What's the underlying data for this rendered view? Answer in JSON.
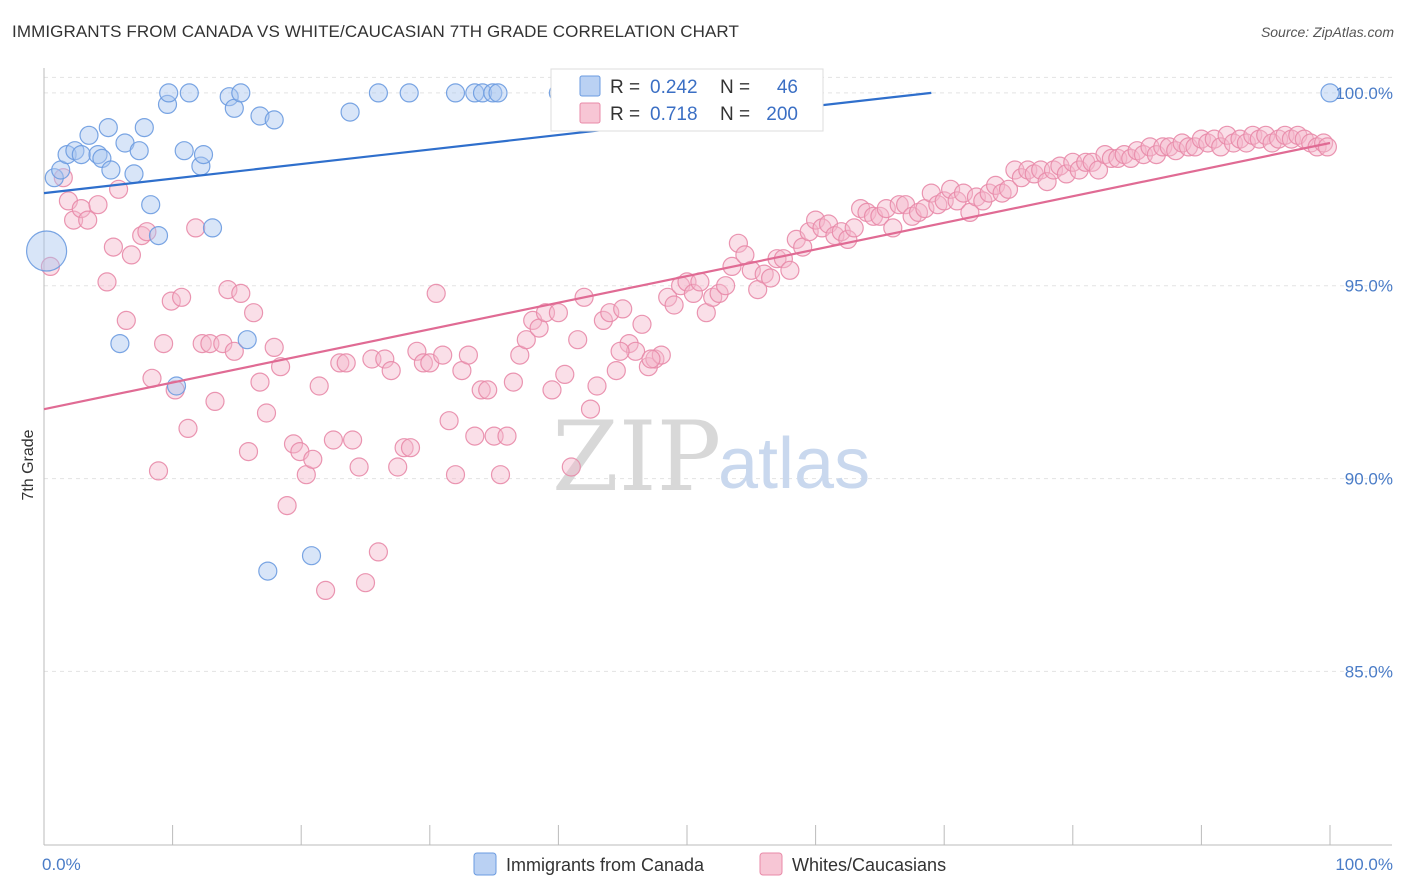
{
  "title": "IMMIGRANTS FROM CANADA VS WHITE/CAUCASIAN 7TH GRADE CORRELATION CHART",
  "source": "Source: ZipAtlas.com",
  "watermark": {
    "zip": "ZIP",
    "atlas": "atlas"
  },
  "chart_data": {
    "type": "scatter",
    "title": "IMMIGRANTS FROM CANADA VS WHITE/CAUCASIAN 7TH GRADE CORRELATION CHART",
    "xlabel": "",
    "ylabel": "7th Grade",
    "xlim": [
      0,
      100
    ],
    "ylim": [
      80.5,
      100.8
    ],
    "x_tick_labels": [
      "0.0%",
      "100.0%"
    ],
    "y_ticks": [
      85,
      90,
      95,
      100
    ],
    "y_tick_labels": [
      "85.0%",
      "90.0%",
      "95.0%",
      "100.0%"
    ],
    "grid": true,
    "legend": {
      "placement": "top-center",
      "rows": [
        {
          "r_label": "R =",
          "r_value": "0.242",
          "n_label": "N =",
          "n_value": "46"
        },
        {
          "r_label": "R =",
          "r_value": "0.718",
          "n_label": "N =",
          "n_value": "200"
        }
      ]
    },
    "series": [
      {
        "name": "Immigrants from Canada",
        "color": "#6b9be0",
        "fill": "#a9c6f0",
        "trend": {
          "x": [
            0,
            69
          ],
          "y": [
            97.4,
            100.0
          ]
        },
        "points": [
          [
            0.2,
            95.9
          ],
          [
            0.8,
            97.8
          ],
          [
            1.3,
            98.0
          ],
          [
            1.8,
            98.4
          ],
          [
            2.4,
            98.5
          ],
          [
            2.9,
            98.4
          ],
          [
            3.5,
            98.9
          ],
          [
            4.2,
            98.4
          ],
          [
            4.5,
            98.3
          ],
          [
            5.0,
            99.1
          ],
          [
            5.2,
            98.0
          ],
          [
            6.3,
            98.7
          ],
          [
            7.0,
            97.9
          ],
          [
            7.4,
            98.5
          ],
          [
            7.8,
            99.1
          ],
          [
            8.3,
            97.1
          ],
          [
            8.9,
            96.3
          ],
          [
            9.6,
            99.7
          ],
          [
            9.7,
            100.0
          ],
          [
            10.9,
            98.5
          ],
          [
            11.3,
            100.0
          ],
          [
            12.2,
            98.1
          ],
          [
            12.4,
            98.4
          ],
          [
            13.1,
            96.5
          ],
          [
            14.4,
            99.9
          ],
          [
            14.8,
            99.6
          ],
          [
            15.3,
            100.0
          ],
          [
            16.8,
            99.4
          ],
          [
            17.9,
            99.3
          ],
          [
            23.8,
            99.5
          ],
          [
            26.0,
            100.0
          ],
          [
            28.4,
            100.0
          ],
          [
            32.0,
            100.0
          ],
          [
            33.5,
            100.0
          ],
          [
            34.1,
            100.0
          ],
          [
            34.9,
            100.0
          ],
          [
            35.3,
            100.0
          ],
          [
            40.0,
            100.0
          ],
          [
            100.0,
            100.0
          ],
          [
            5.9,
            93.5
          ],
          [
            10.3,
            92.4
          ],
          [
            15.8,
            93.6
          ],
          [
            17.4,
            87.6
          ],
          [
            20.8,
            88.0
          ],
          [
            43.0,
            100.0
          ],
          [
            44.0,
            100.0
          ]
        ]
      },
      {
        "name": "Whites/Caucasians",
        "color": "#e88aa8",
        "fill": "#f5b8cb",
        "trend": {
          "x": [
            0,
            100
          ],
          "y": [
            91.8,
            98.7
          ]
        },
        "points": [
          [
            0.5,
            95.5
          ],
          [
            1.5,
            97.8
          ],
          [
            1.9,
            97.2
          ],
          [
            2.3,
            96.7
          ],
          [
            2.9,
            97.0
          ],
          [
            3.4,
            96.7
          ],
          [
            4.2,
            97.1
          ],
          [
            4.9,
            95.1
          ],
          [
            5.4,
            96.0
          ],
          [
            5.8,
            97.5
          ],
          [
            6.4,
            94.1
          ],
          [
            6.8,
            95.8
          ],
          [
            7.6,
            96.3
          ],
          [
            8.0,
            96.4
          ],
          [
            8.4,
            92.6
          ],
          [
            8.9,
            90.2
          ],
          [
            9.3,
            93.5
          ],
          [
            9.9,
            94.6
          ],
          [
            10.2,
            92.3
          ],
          [
            10.7,
            94.7
          ],
          [
            11.2,
            91.3
          ],
          [
            11.8,
            96.5
          ],
          [
            12.3,
            93.5
          ],
          [
            12.9,
            93.5
          ],
          [
            13.3,
            92.0
          ],
          [
            13.9,
            93.5
          ],
          [
            14.3,
            94.9
          ],
          [
            14.8,
            93.3
          ],
          [
            15.3,
            94.8
          ],
          [
            15.9,
            90.7
          ],
          [
            16.3,
            94.3
          ],
          [
            16.8,
            92.5
          ],
          [
            17.3,
            91.7
          ],
          [
            17.9,
            93.4
          ],
          [
            18.4,
            92.9
          ],
          [
            18.9,
            89.3
          ],
          [
            19.4,
            90.9
          ],
          [
            19.9,
            90.7
          ],
          [
            20.4,
            90.1
          ],
          [
            20.9,
            90.5
          ],
          [
            21.4,
            92.4
          ],
          [
            21.9,
            87.1
          ],
          [
            22.5,
            91.0
          ],
          [
            23.0,
            93.0
          ],
          [
            23.5,
            93.0
          ],
          [
            24.0,
            91.0
          ],
          [
            24.5,
            90.3
          ],
          [
            25.0,
            87.3
          ],
          [
            25.5,
            93.1
          ],
          [
            26.0,
            88.1
          ],
          [
            26.5,
            93.1
          ],
          [
            27.0,
            92.8
          ],
          [
            27.5,
            90.3
          ],
          [
            28.0,
            90.8
          ],
          [
            28.5,
            90.8
          ],
          [
            29.0,
            93.3
          ],
          [
            29.5,
            93.0
          ],
          [
            30.0,
            93.0
          ],
          [
            30.5,
            94.8
          ],
          [
            31.0,
            93.2
          ],
          [
            31.5,
            91.5
          ],
          [
            32.0,
            90.1
          ],
          [
            32.5,
            92.8
          ],
          [
            33.0,
            93.2
          ],
          [
            33.5,
            91.1
          ],
          [
            34.0,
            92.3
          ],
          [
            34.5,
            92.3
          ],
          [
            35.0,
            91.1
          ],
          [
            35.5,
            90.1
          ],
          [
            36.0,
            91.1
          ],
          [
            36.5,
            92.5
          ],
          [
            37.0,
            93.2
          ],
          [
            37.5,
            93.6
          ],
          [
            38.0,
            94.1
          ],
          [
            38.5,
            93.9
          ],
          [
            39.0,
            94.3
          ],
          [
            39.5,
            92.3
          ],
          [
            40.0,
            94.3
          ],
          [
            40.5,
            92.7
          ],
          [
            41.0,
            90.3
          ],
          [
            41.5,
            93.6
          ],
          [
            42.0,
            94.7
          ],
          [
            42.5,
            91.8
          ],
          [
            43.0,
            92.4
          ],
          [
            43.5,
            94.1
          ],
          [
            44.0,
            94.3
          ],
          [
            44.5,
            92.8
          ],
          [
            45.0,
            94.4
          ],
          [
            45.5,
            93.5
          ],
          [
            46.0,
            93.3
          ],
          [
            46.5,
            94.0
          ],
          [
            47.0,
            92.9
          ],
          [
            47.5,
            93.1
          ],
          [
            48.0,
            93.2
          ],
          [
            48.5,
            94.7
          ],
          [
            49.0,
            94.5
          ],
          [
            49.5,
            95.0
          ],
          [
            50.0,
            95.1
          ],
          [
            50.5,
            94.8
          ],
          [
            51.0,
            95.1
          ],
          [
            51.5,
            94.3
          ],
          [
            52.0,
            94.7
          ],
          [
            52.5,
            94.8
          ],
          [
            53.0,
            95.0
          ],
          [
            53.5,
            95.5
          ],
          [
            54.0,
            96.1
          ],
          [
            54.5,
            95.8
          ],
          [
            55.0,
            95.4
          ],
          [
            55.5,
            94.9
          ],
          [
            56.0,
            95.3
          ],
          [
            56.5,
            95.2
          ],
          [
            57.0,
            95.7
          ],
          [
            57.5,
            95.7
          ],
          [
            58.0,
            95.4
          ],
          [
            58.5,
            96.2
          ],
          [
            59.0,
            96.0
          ],
          [
            59.5,
            96.4
          ],
          [
            60.0,
            96.7
          ],
          [
            60.5,
            96.5
          ],
          [
            61.0,
            96.6
          ],
          [
            61.5,
            96.3
          ],
          [
            62.0,
            96.4
          ],
          [
            62.5,
            96.2
          ],
          [
            63.0,
            96.5
          ],
          [
            63.5,
            97.0
          ],
          [
            64.0,
            96.9
          ],
          [
            64.5,
            96.8
          ],
          [
            65.0,
            96.8
          ],
          [
            65.5,
            97.0
          ],
          [
            66.0,
            96.5
          ],
          [
            66.5,
            97.1
          ],
          [
            67.0,
            97.1
          ],
          [
            67.5,
            96.8
          ],
          [
            68.0,
            96.9
          ],
          [
            68.5,
            97.0
          ],
          [
            69.0,
            97.4
          ],
          [
            69.5,
            97.1
          ],
          [
            70.0,
            97.2
          ],
          [
            70.5,
            97.5
          ],
          [
            71.0,
            97.2
          ],
          [
            71.5,
            97.4
          ],
          [
            72.0,
            96.9
          ],
          [
            72.5,
            97.3
          ],
          [
            73.0,
            97.2
          ],
          [
            73.5,
            97.4
          ],
          [
            74.0,
            97.6
          ],
          [
            74.5,
            97.4
          ],
          [
            75.0,
            97.5
          ],
          [
            75.5,
            98.0
          ],
          [
            76.0,
            97.8
          ],
          [
            76.5,
            98.0
          ],
          [
            77.0,
            97.9
          ],
          [
            77.5,
            98.0
          ],
          [
            78.0,
            97.7
          ],
          [
            78.5,
            98.0
          ],
          [
            79.0,
            98.1
          ],
          [
            79.5,
            97.9
          ],
          [
            80.0,
            98.2
          ],
          [
            80.5,
            98.0
          ],
          [
            81.0,
            98.2
          ],
          [
            81.5,
            98.2
          ],
          [
            82.0,
            98.0
          ],
          [
            82.5,
            98.4
          ],
          [
            83.0,
            98.3
          ],
          [
            83.5,
            98.3
          ],
          [
            84.0,
            98.4
          ],
          [
            84.5,
            98.3
          ],
          [
            85.0,
            98.5
          ],
          [
            85.5,
            98.4
          ],
          [
            86.0,
            98.6
          ],
          [
            86.5,
            98.4
          ],
          [
            87.0,
            98.6
          ],
          [
            87.5,
            98.6
          ],
          [
            88.0,
            98.5
          ],
          [
            88.5,
            98.7
          ],
          [
            89.0,
            98.6
          ],
          [
            89.5,
            98.6
          ],
          [
            90.0,
            98.8
          ],
          [
            90.5,
            98.7
          ],
          [
            91.0,
            98.8
          ],
          [
            91.5,
            98.6
          ],
          [
            92.0,
            98.9
          ],
          [
            92.5,
            98.7
          ],
          [
            93.0,
            98.8
          ],
          [
            93.5,
            98.7
          ],
          [
            94.0,
            98.9
          ],
          [
            94.5,
            98.8
          ],
          [
            95.0,
            98.9
          ],
          [
            95.5,
            98.7
          ],
          [
            96.0,
            98.8
          ],
          [
            96.5,
            98.9
          ],
          [
            97.0,
            98.8
          ],
          [
            97.5,
            98.9
          ],
          [
            98.0,
            98.8
          ],
          [
            98.5,
            98.7
          ],
          [
            99.0,
            98.6
          ],
          [
            99.5,
            98.7
          ],
          [
            99.8,
            98.6
          ],
          [
            44.8,
            93.3
          ],
          [
            47.2,
            93.1
          ]
        ]
      }
    ]
  }
}
